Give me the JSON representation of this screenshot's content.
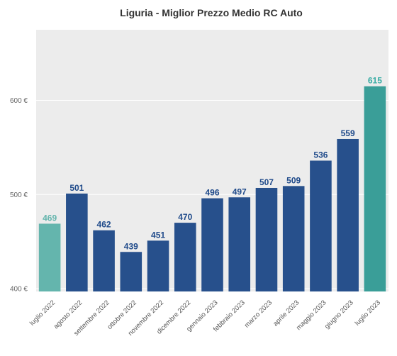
{
  "chart_data": {
    "type": "bar",
    "title": "Liguria - Miglior Prezzo Medio RC Auto",
    "xlabel": "",
    "ylabel": "",
    "ylim": [
      397,
      675
    ],
    "yticks": [
      400,
      500,
      600
    ],
    "ytick_labels": [
      "400 €",
      "500 €",
      "600 €"
    ],
    "grid": true,
    "categories": [
      "luglio 2022",
      "agosto 2022",
      "settembre 2022",
      "ottobre 2022",
      "novembre 2022",
      "dicembre 2022",
      "gennaio 2023",
      "febbraio 2023",
      "marzo 2023",
      "aprile 2023",
      "maggio 2023",
      "giugno 2023",
      "luglio 2023"
    ],
    "values": [
      469,
      501,
      462,
      439,
      451,
      470,
      496,
      497,
      507,
      509,
      536,
      559,
      615
    ],
    "value_labels": [
      "469",
      "501",
      "462",
      "439",
      "451",
      "470",
      "496",
      "497",
      "507",
      "509",
      "536",
      "559",
      "615"
    ],
    "bar_colors": [
      "#64b5ad",
      "#27508c",
      "#27508c",
      "#27508c",
      "#27508c",
      "#27508c",
      "#27508c",
      "#27508c",
      "#27508c",
      "#27508c",
      "#27508c",
      "#27508c",
      "#3a9e98"
    ],
    "label_colors": [
      "#64b5ad",
      "#1f4a8a",
      "#1f4a8a",
      "#1f4a8a",
      "#1f4a8a",
      "#1f4a8a",
      "#1f4a8a",
      "#1f4a8a",
      "#1f4a8a",
      "#1f4a8a",
      "#1f4a8a",
      "#1f4a8a",
      "#3aada5"
    ],
    "plot_background": "#ececec"
  }
}
